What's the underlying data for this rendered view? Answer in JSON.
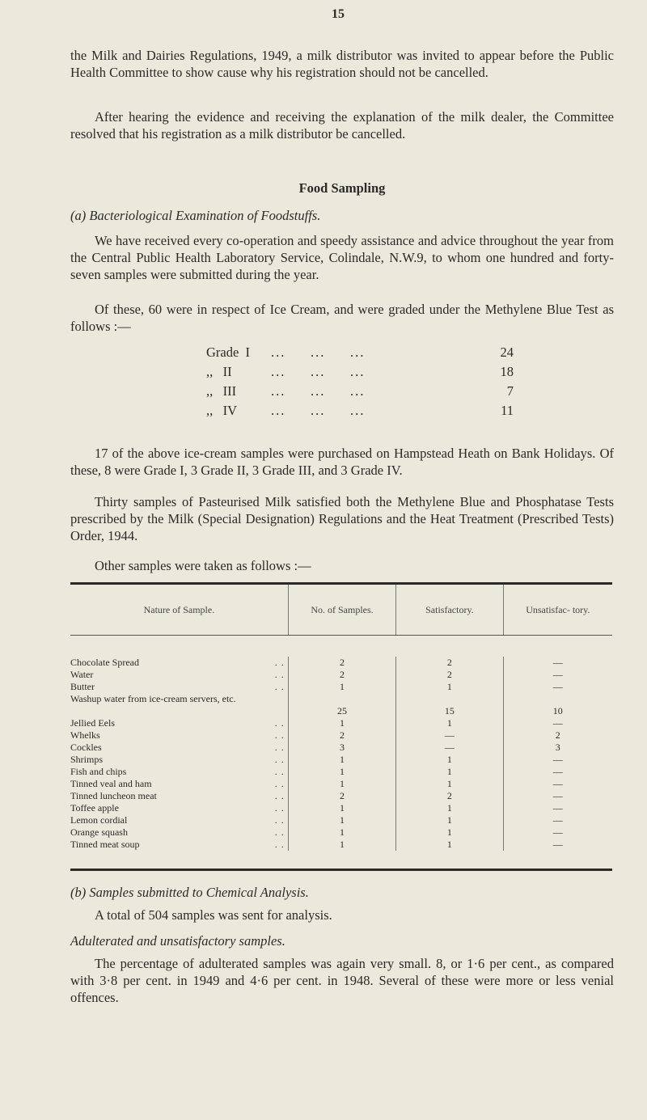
{
  "page_number": "15",
  "paragraphs": {
    "p1": "the Milk and Dairies Regulations, 1949, a milk distributor was invited to appear before the Public Health Committee to show cause why his registration should not be cancelled.",
    "p2": "After hearing the evidence and receiving the explanation of the milk dealer, the Committee resolved that his registration as a milk distributor be cancelled.",
    "heading": "Food Sampling",
    "sub_a": "(a) Bacteriological Examination of Foodstuffs.",
    "p3": "We have received every co-operation and speedy assistance and advice throughout the year from the Central Public Health Laboratory Service, Colindale, N.W.9, to whom one hundred and forty-seven samples were submitted during the year.",
    "p4": "Of these, 60 were in respect of Ice Cream, and were graded under the Methylene Blue Test as follows :—",
    "p5": "17 of the above ice-cream samples were purchased on Hampstead Heath on Bank Holidays. Of these, 8 were Grade I, 3 Grade II, 3 Grade III, and 3 Grade IV.",
    "p6": "Thirty samples of Pasteurised Milk satisfied both the Methylene Blue and Phosphatase Tests prescribed by the Milk (Special Designation) Regulations and the Heat Treatment (Prescribed Tests) Order, 1944.",
    "p7": "Other samples were taken as follows :—",
    "sub_b": "(b) Samples submitted to Chemical Analysis.",
    "p8": "A total of 504 samples was sent for analysis.",
    "sub_c": "Adulterated and unsatisfactory samples.",
    "p9": "The percentage of adulterated samples was again very small. 8, or 1·6 per cent., as compared with 3·8 per cent. in 1949 and 4·6 per cent. in 1948. Several of these were more or less venial offences."
  },
  "grades": [
    {
      "label": "Grade  I",
      "dots": "...     ...     ...",
      "value": "24"
    },
    {
      "label": ",,   II",
      "dots": "...     ...     ...",
      "value": "18"
    },
    {
      "label": ",,   III",
      "dots": "...     ...     ...",
      "value": "7"
    },
    {
      "label": ",,   IV",
      "dots": "...     ...     ...",
      "value": "11"
    }
  ],
  "table": {
    "headers": [
      "Nature of Sample.",
      "No. of Samples.",
      "Satisfactory.",
      "Unsatisfac- tory."
    ],
    "rows": [
      [
        "Chocolate Spread",
        "2",
        "2",
        "—"
      ],
      [
        "Water",
        "2",
        "2",
        "—"
      ],
      [
        "Butter",
        "1",
        "1",
        "—"
      ],
      [
        "Washup water from ice-cream servers, etc.",
        "25",
        "15",
        "10"
      ],
      [
        "Jellied Eels",
        "1",
        "1",
        "—"
      ],
      [
        "Whelks",
        "2",
        "—",
        "2"
      ],
      [
        "Cockles",
        "3",
        "—",
        "3"
      ],
      [
        "Shrimps",
        "1",
        "1",
        "—"
      ],
      [
        "Fish and chips",
        "1",
        "1",
        "—"
      ],
      [
        "Tinned veal and ham",
        "1",
        "1",
        "—"
      ],
      [
        "Tinned luncheon meat",
        "2",
        "2",
        "—"
      ],
      [
        "Toffee apple",
        "1",
        "1",
        "—"
      ],
      [
        "Lemon cordial",
        "1",
        "1",
        "—"
      ],
      [
        "Orange squash",
        "1",
        "1",
        "—"
      ],
      [
        "Tinned meat soup",
        "1",
        "1",
        "—"
      ]
    ]
  }
}
